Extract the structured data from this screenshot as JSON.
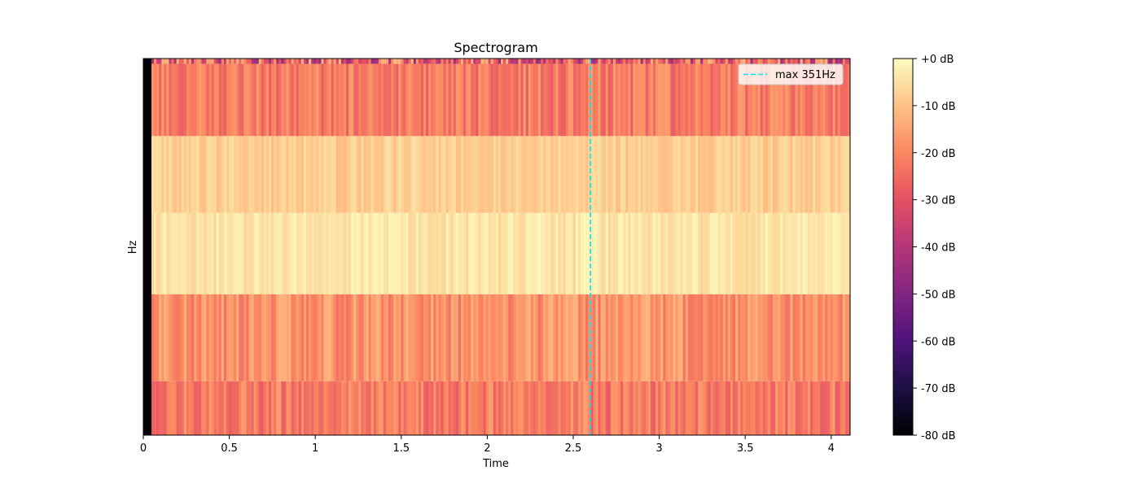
{
  "chart_data": {
    "type": "heatmap",
    "title": "Spectrogram",
    "xlabel": "Time",
    "ylabel": "Hz",
    "xlim": [
      0,
      4.11
    ],
    "x_ticks": [
      0,
      0.5,
      1,
      1.5,
      2,
      2.5,
      3,
      3.5,
      4
    ],
    "x_tick_labels": [
      "0",
      "0.5",
      "1",
      "1.5",
      "2",
      "2.5",
      "3",
      "3.5",
      "4"
    ],
    "colorbar": {
      "range": [
        -80,
        0
      ],
      "ticks": [
        0,
        -10,
        -20,
        -30,
        -40,
        -50,
        -60,
        -70,
        -80
      ],
      "tick_labels": [
        "+0 dB",
        "-10 dB",
        "-20 dB",
        "-30 dB",
        "-40 dB",
        "-50 dB",
        "-60 dB",
        "-70 dB",
        "-80 dB"
      ],
      "colormap": "magma"
    },
    "bands": [
      {
        "level_db": -28,
        "variation_db": 18
      },
      {
        "level_db": -22,
        "variation_db": 6
      },
      {
        "level_db": -8,
        "variation_db": 3
      },
      {
        "level_db": -4,
        "variation_db": 3
      },
      {
        "level_db": -18,
        "variation_db": 6
      },
      {
        "level_db": -22,
        "variation_db": 6
      }
    ],
    "annotation": {
      "type": "vline",
      "x": 2.6,
      "label": "max 351Hz",
      "color": "#00e5ee",
      "linestyle": "dashed"
    },
    "legend_position": "top-right"
  }
}
